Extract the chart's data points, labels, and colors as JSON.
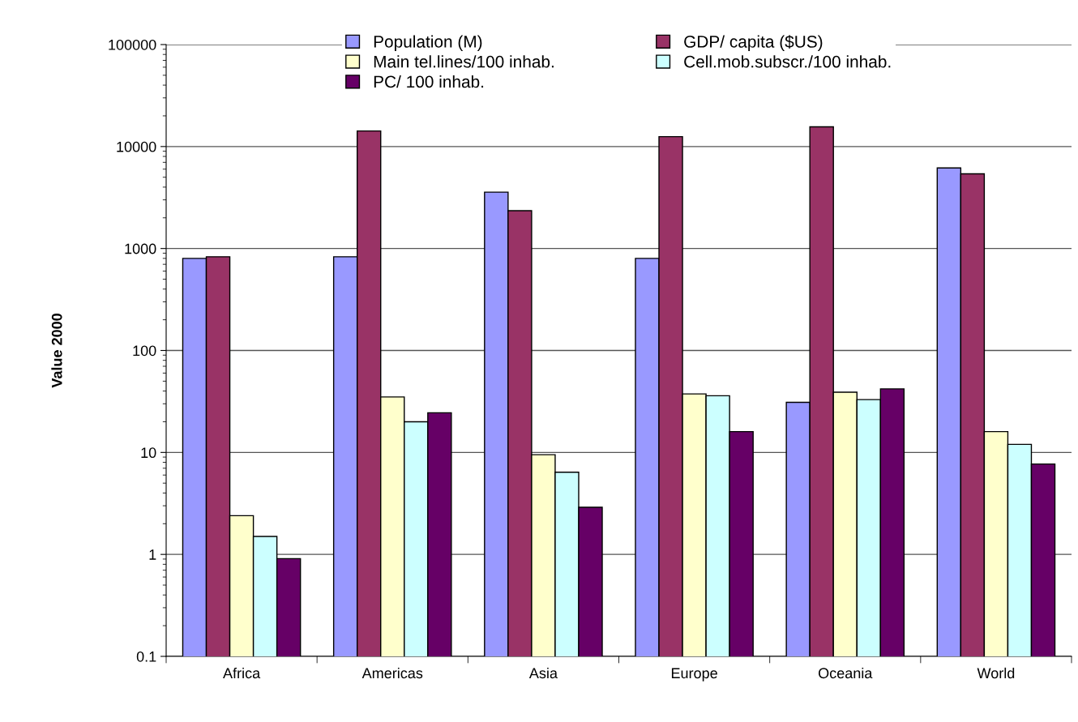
{
  "chart_data": {
    "type": "bar",
    "ylabel": "Value 2000",
    "log": true,
    "categories": [
      "Africa",
      "Americas",
      "Asia",
      "Europe",
      "Oceania",
      "World"
    ],
    "ylim": [
      0.1,
      100000
    ],
    "yticks": [
      0.1,
      1,
      10,
      100,
      1000,
      10000,
      100000
    ],
    "grid": "y",
    "legend": "top",
    "series": [
      {
        "name": "Population (M)",
        "color": "#9999ff",
        "values": [
          800,
          830,
          3570,
          800,
          31,
          6170
        ]
      },
      {
        "name": "GDP/ capita ($US)",
        "color": "#993366",
        "values": [
          830,
          14200,
          2350,
          12500,
          15600,
          5400
        ]
      },
      {
        "name": "Main tel.lines/100 inhab.",
        "color": "#ffffcc",
        "values": [
          2.4,
          35,
          9.5,
          37.5,
          39,
          16
        ]
      },
      {
        "name": "Cell.mob.subscr./100 inhab.",
        "color": "#ccffff",
        "values": [
          1.5,
          20,
          6.4,
          36,
          33,
          12
        ]
      },
      {
        "name": "PC/ 100 inhab.",
        "color": "#660066",
        "values": [
          0.91,
          24.5,
          2.9,
          16,
          42,
          7.7
        ]
      }
    ]
  }
}
